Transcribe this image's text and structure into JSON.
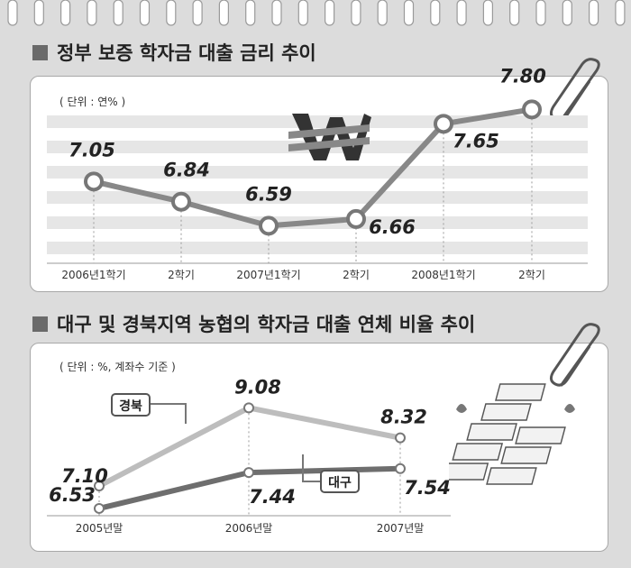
{
  "chart_data": [
    {
      "type": "line",
      "title": "정부 보증 학자금 대출 금리 추이",
      "unit_label": "( 단위 : 연% )",
      "categories": [
        "2006년1학기",
        "2학기",
        "2007년1학기",
        "2학기",
        "2008년1학기",
        "2학기"
      ],
      "series": [
        {
          "values": [
            7.05,
            6.84,
            6.59,
            6.66,
            7.65,
            7.8
          ],
          "labels": [
            "7.05",
            "6.84",
            "6.59",
            "6.66",
            "7.65",
            "7.80"
          ]
        }
      ],
      "ylim": [
        6.2,
        8.0
      ]
    },
    {
      "type": "line",
      "title": "대구 및 경북지역 농협의 학자금 대출 연체 비율 추이",
      "unit_label": "( 단위 : %, 계좌수 기준 )",
      "categories": [
        "2005년말",
        "2006년말",
        "2007년말"
      ],
      "series": [
        {
          "name": "경북",
          "values": [
            7.1,
            9.08,
            8.32
          ],
          "labels": [
            "7.10",
            "9.08",
            "8.32"
          ]
        },
        {
          "name": "대구",
          "values": [
            6.53,
            7.44,
            7.54
          ],
          "labels": [
            "6.53",
            "7.44",
            "7.54"
          ]
        }
      ],
      "ylim": [
        6.3,
        9.5
      ]
    }
  ]
}
